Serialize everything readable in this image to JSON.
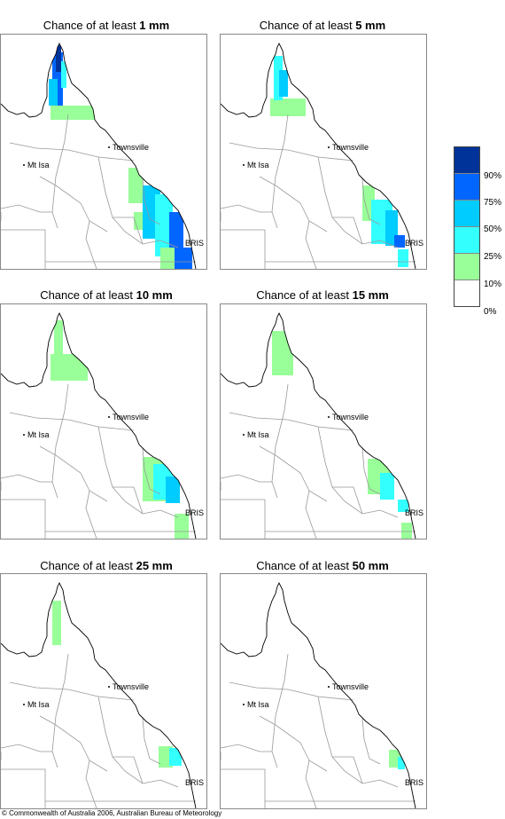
{
  "colors": {
    "c10_25": "#99ff99",
    "c25_50": "#33ffff",
    "c50_75": "#00ccff",
    "c75_90": "#0066ff",
    "c90": "#003399",
    "c0_10": "#ffffff",
    "outline": "#000000",
    "boundary": "#999999"
  },
  "labels": {
    "townsville": "Townsville",
    "mtisa": "Mt Isa",
    "bris": "BRIS"
  },
  "panels": [
    {
      "prefix": "Chance of at least",
      "amount": "1 mm"
    },
    {
      "prefix": "Chance of at least",
      "amount": "5 mm"
    },
    {
      "prefix": "Chance of at least",
      "amount": "10 mm"
    },
    {
      "prefix": "Chance of at least",
      "amount": "15 mm"
    },
    {
      "prefix": "Chance of at least",
      "amount": "25 mm"
    },
    {
      "prefix": "Chance of at least",
      "amount": "50 mm"
    }
  ],
  "legend": {
    "labels": [
      "90%",
      "75%",
      "50%",
      "25%",
      "10%",
      "0%"
    ],
    "swatch_colors": [
      "#003399",
      "#0066ff",
      "#00ccff",
      "#33ffff",
      "#99ff99",
      "#ffffff"
    ]
  },
  "footer": {
    "copyright": "© Commonwealth of Australia 2006, Australian Bureau of Meteorology"
  }
}
